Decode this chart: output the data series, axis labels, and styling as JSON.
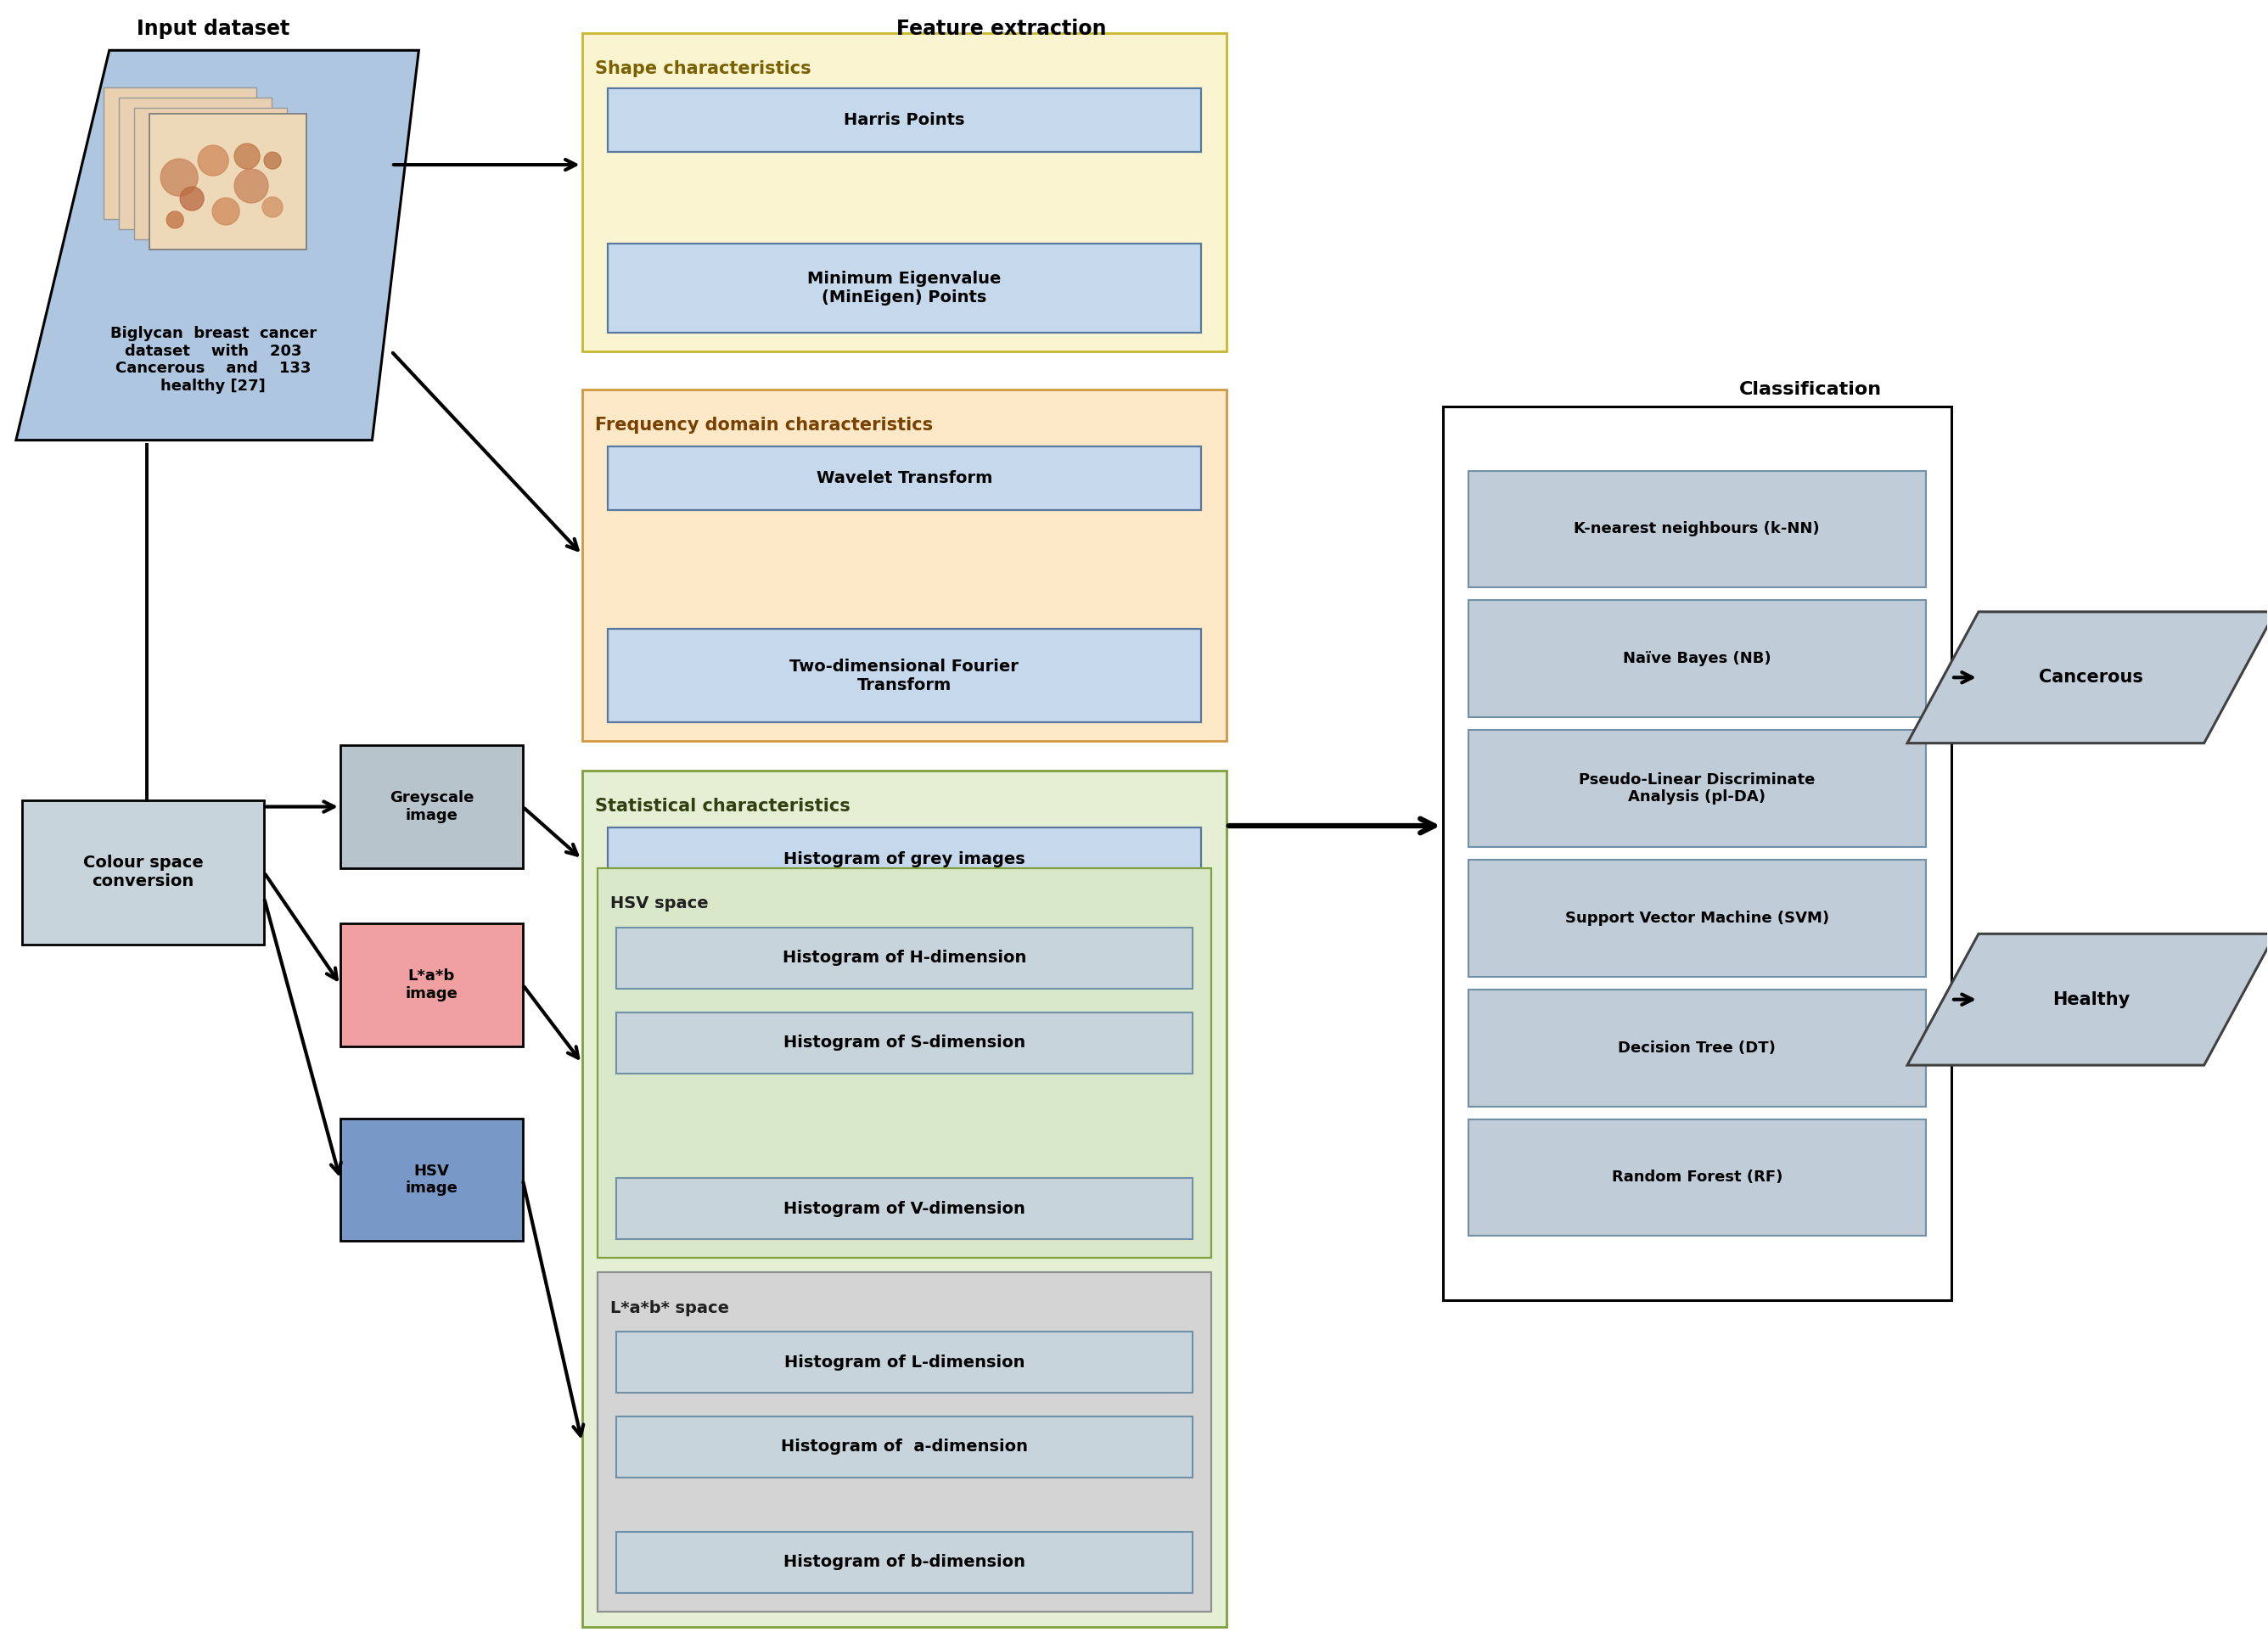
{
  "bg_color": "#ffffff",
  "colors": {
    "input_box_bg": "#aec6e0",
    "shape_char_bg": "#faf5d0",
    "shape_char_ec": "#c8b830",
    "shape_char_title": "#7a6000",
    "freq_char_bg": "#fde8c8",
    "freq_char_ec": "#d09840",
    "freq_char_title": "#7a4000",
    "stat_char_bg": "#e4efd4",
    "stat_char_ec": "#80a040",
    "stat_char_title": "#304010",
    "inner_blue": "#c5d8ec",
    "inner_blue_ec": "#5878a0",
    "hsv_sub_bg": "#d8e8c8",
    "hsv_sub_ec": "#80a040",
    "lab_sub_bg": "#d4d4d4",
    "lab_sub_ec": "#909090",
    "inner_grey": "#c8d4dc",
    "inner_grey_ec": "#7090a8",
    "greyscale_bg": "#b8c4cc",
    "lab_image_bg": "#f0a0a0",
    "hsv_image_bg": "#7898c8",
    "csc_bg": "#c8d4dc",
    "clf_bg": "#ffffff",
    "clf_inner": "#c0ccd8",
    "clf_inner_ec": "#7090a8",
    "output_bg": "#c0ccd8",
    "output_ec": "#404040"
  },
  "labels": {
    "input_dataset": "Input dataset",
    "feature_extraction": "Feature extraction",
    "classification": "Classification",
    "dataset_text": "Biglycan  breast  cancer\ndataset    with    203\nCancerous    and    133\nhealthy [27]",
    "shape_title": "Shape characteristics",
    "harris": "Harris Points",
    "mineigen": "Minimum Eigenvalue\n(MinEigen) Points",
    "freq_title": "Frequency domain characteristics",
    "wavelet": "Wavelet Transform",
    "fourier": "Two-dimensional Fourier\nTransform",
    "stat_title": "Statistical characteristics",
    "hist_grey": "Histogram of grey images",
    "hsv_space": "HSV space",
    "hist_h": "Histogram of H-dimension",
    "hist_s": "Histogram of S-dimension",
    "hist_v": "Histogram of V-dimension",
    "lab_space": "L*a*b* space",
    "hist_l": "Histogram of L-dimension",
    "hist_a": "Histogram of  a-dimension",
    "hist_b": "Histogram of b-dimension",
    "greyscale": "Greyscale\nimage",
    "lab_image": "L*a*b\nimage",
    "hsv_image": "HSV\nimage",
    "csc": "Colour space\nconversion",
    "knn": "K-nearest neighbours (k-NN)",
    "nb": "Naïve Bayes (NB)",
    "plda": "Pseudo-Linear Discriminate\nAnalysis (pl-DA)",
    "svm": "Support Vector Machine (SVM)",
    "dt": "Decision Tree (DT)",
    "rf": "Random Forest (RF)",
    "cancerous": "Cancerous",
    "healthy": "Healthy"
  }
}
